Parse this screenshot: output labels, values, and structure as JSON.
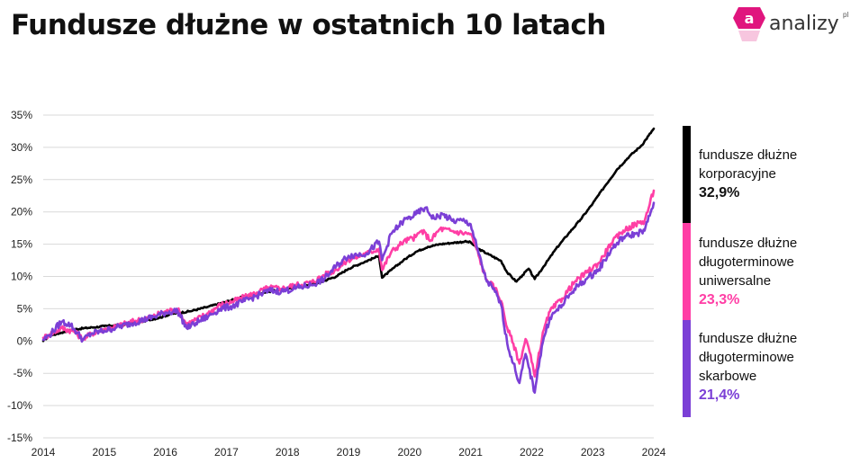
{
  "header": {
    "title": "Fundusze dłużne w ostatnich 10 latach",
    "logo_text": "analizy",
    "logo_sup": "pl",
    "logo_mark": "a"
  },
  "chart_data": {
    "type": "line",
    "title": "Fundusze dłużne w ostatnich 10 latach",
    "xlabel": "",
    "ylabel": "",
    "xlim": [
      2014,
      2024
    ],
    "ylim": [
      -15,
      35
    ],
    "x_ticks": [
      "2014",
      "2015",
      "2016",
      "2017",
      "2018",
      "2019",
      "2020",
      "2021",
      "2022",
      "2023",
      "2024"
    ],
    "y_ticks": [
      "35%",
      "30%",
      "25%",
      "20%",
      "15%",
      "10%",
      "5%",
      "0%",
      "-5%",
      "-10%",
      "-15%"
    ],
    "grid": true,
    "legend_position": "right",
    "series": [
      {
        "name": "fundusze dłużne korporacyjne",
        "final_value": "32,9%",
        "color": "#000000",
        "points": [
          [
            2014.0,
            0.0
          ],
          [
            2014.1,
            0.8
          ],
          [
            2014.3,
            1.3
          ],
          [
            2014.5,
            1.8
          ],
          [
            2014.8,
            2.1
          ],
          [
            2015.0,
            2.3
          ],
          [
            2015.3,
            2.5
          ],
          [
            2015.6,
            3.0
          ],
          [
            2015.9,
            3.6
          ],
          [
            2016.1,
            4.2
          ],
          [
            2016.4,
            4.6
          ],
          [
            2016.7,
            5.3
          ],
          [
            2017.0,
            6.1
          ],
          [
            2017.3,
            6.9
          ],
          [
            2017.6,
            7.5
          ],
          [
            2017.9,
            8.0
          ],
          [
            2018.2,
            8.4
          ],
          [
            2018.5,
            9.0
          ],
          [
            2018.8,
            10.0
          ],
          [
            2019.0,
            11.2
          ],
          [
            2019.2,
            12.0
          ],
          [
            2019.4,
            12.8
          ],
          [
            2019.5,
            13.2
          ],
          [
            2019.55,
            9.8
          ],
          [
            2019.7,
            11.0
          ],
          [
            2019.9,
            12.5
          ],
          [
            2020.1,
            13.8
          ],
          [
            2020.3,
            14.6
          ],
          [
            2020.5,
            15.0
          ],
          [
            2020.7,
            15.2
          ],
          [
            2020.9,
            15.4
          ],
          [
            2021.0,
            15.3
          ],
          [
            2021.1,
            14.4
          ],
          [
            2021.3,
            13.4
          ],
          [
            2021.5,
            12.4
          ],
          [
            2021.6,
            10.6
          ],
          [
            2021.75,
            9.2
          ],
          [
            2021.85,
            10.2
          ],
          [
            2021.95,
            11.2
          ],
          [
            2022.05,
            9.6
          ],
          [
            2022.2,
            11.6
          ],
          [
            2022.4,
            14.3
          ],
          [
            2022.6,
            16.6
          ],
          [
            2022.8,
            18.8
          ],
          [
            2023.0,
            21.3
          ],
          [
            2023.2,
            24.0
          ],
          [
            2023.4,
            26.6
          ],
          [
            2023.6,
            28.6
          ],
          [
            2023.8,
            30.3
          ],
          [
            2024.0,
            32.9
          ]
        ]
      },
      {
        "name": "fundusze dłużne długoterminowe uniwersalne",
        "final_value": "23,3%",
        "color": "#ff3ea5",
        "points": [
          [
            2014.0,
            0.5
          ],
          [
            2014.1,
            1.0
          ],
          [
            2014.3,
            2.0
          ],
          [
            2014.5,
            1.5
          ],
          [
            2014.65,
            0.3
          ],
          [
            2014.8,
            1.2
          ],
          [
            2015.0,
            1.8
          ],
          [
            2015.2,
            2.3
          ],
          [
            2015.5,
            3.1
          ],
          [
            2015.8,
            3.8
          ],
          [
            2016.0,
            4.6
          ],
          [
            2016.2,
            4.9
          ],
          [
            2016.35,
            2.6
          ],
          [
            2016.5,
            3.3
          ],
          [
            2016.7,
            4.3
          ],
          [
            2016.9,
            5.6
          ],
          [
            2017.1,
            6.1
          ],
          [
            2017.3,
            6.8
          ],
          [
            2017.5,
            7.5
          ],
          [
            2017.7,
            8.3
          ],
          [
            2017.9,
            8.1
          ],
          [
            2018.1,
            8.6
          ],
          [
            2018.4,
            9.1
          ],
          [
            2018.6,
            10.2
          ],
          [
            2018.8,
            11.1
          ],
          [
            2019.0,
            12.6
          ],
          [
            2019.3,
            13.6
          ],
          [
            2019.5,
            14.3
          ],
          [
            2019.55,
            11.0
          ],
          [
            2019.7,
            13.8
          ],
          [
            2019.9,
            15.4
          ],
          [
            2020.1,
            16.1
          ],
          [
            2020.2,
            17.1
          ],
          [
            2020.35,
            15.6
          ],
          [
            2020.5,
            17.4
          ],
          [
            2020.7,
            17.0
          ],
          [
            2020.9,
            16.7
          ],
          [
            2021.0,
            16.6
          ],
          [
            2021.1,
            14.2
          ],
          [
            2021.25,
            9.6
          ],
          [
            2021.4,
            8.2
          ],
          [
            2021.5,
            6.2
          ],
          [
            2021.6,
            2.0
          ],
          [
            2021.7,
            -0.4
          ],
          [
            2021.8,
            -3.5
          ],
          [
            2021.9,
            0.3
          ],
          [
            2021.95,
            -1.0
          ],
          [
            2022.05,
            -5.5
          ],
          [
            2022.1,
            -3.0
          ],
          [
            2022.2,
            1.8
          ],
          [
            2022.3,
            4.6
          ],
          [
            2022.5,
            6.6
          ],
          [
            2022.7,
            9.1
          ],
          [
            2022.9,
            10.6
          ],
          [
            2023.1,
            12.1
          ],
          [
            2023.3,
            15.1
          ],
          [
            2023.5,
            17.1
          ],
          [
            2023.7,
            18.1
          ],
          [
            2023.85,
            18.6
          ],
          [
            2024.0,
            23.3
          ]
        ]
      },
      {
        "name": "fundusze dłużne długoterminowe skarbowe",
        "final_value": "21,4%",
        "color": "#7b3fd6",
        "points": [
          [
            2014.0,
            0.2
          ],
          [
            2014.1,
            0.9
          ],
          [
            2014.3,
            3.0
          ],
          [
            2014.45,
            2.5
          ],
          [
            2014.65,
            0.2
          ],
          [
            2014.8,
            1.2
          ],
          [
            2015.0,
            1.6
          ],
          [
            2015.2,
            2.1
          ],
          [
            2015.5,
            2.9
          ],
          [
            2015.8,
            3.7
          ],
          [
            2016.0,
            4.4
          ],
          [
            2016.2,
            4.7
          ],
          [
            2016.35,
            2.0
          ],
          [
            2016.5,
            2.8
          ],
          [
            2016.7,
            3.8
          ],
          [
            2016.9,
            5.0
          ],
          [
            2017.1,
            5.4
          ],
          [
            2017.3,
            6.2
          ],
          [
            2017.5,
            7.0
          ],
          [
            2017.7,
            7.8
          ],
          [
            2017.9,
            7.7
          ],
          [
            2018.1,
            8.1
          ],
          [
            2018.4,
            8.7
          ],
          [
            2018.6,
            9.6
          ],
          [
            2018.8,
            11.6
          ],
          [
            2019.0,
            13.2
          ],
          [
            2019.3,
            13.6
          ],
          [
            2019.5,
            15.4
          ],
          [
            2019.55,
            12.5
          ],
          [
            2019.7,
            16.6
          ],
          [
            2019.9,
            18.6
          ],
          [
            2020.1,
            19.6
          ],
          [
            2020.25,
            20.6
          ],
          [
            2020.4,
            19.0
          ],
          [
            2020.55,
            19.6
          ],
          [
            2020.7,
            18.6
          ],
          [
            2020.9,
            18.6
          ],
          [
            2021.0,
            18.1
          ],
          [
            2021.1,
            14.6
          ],
          [
            2021.25,
            9.6
          ],
          [
            2021.4,
            7.6
          ],
          [
            2021.5,
            5.6
          ],
          [
            2021.6,
            -0.4
          ],
          [
            2021.7,
            -3.5
          ],
          [
            2021.8,
            -6.5
          ],
          [
            2021.9,
            -2.0
          ],
          [
            2021.95,
            -4.0
          ],
          [
            2022.05,
            -8.0
          ],
          [
            2022.1,
            -4.5
          ],
          [
            2022.2,
            0.6
          ],
          [
            2022.3,
            3.6
          ],
          [
            2022.5,
            5.6
          ],
          [
            2022.7,
            8.1
          ],
          [
            2022.9,
            9.6
          ],
          [
            2023.1,
            11.1
          ],
          [
            2023.3,
            14.1
          ],
          [
            2023.5,
            16.1
          ],
          [
            2023.7,
            16.6
          ],
          [
            2023.85,
            17.1
          ],
          [
            2024.0,
            21.4
          ]
        ]
      }
    ]
  },
  "colors": {
    "accent": "#e0157e",
    "corporate": "#000000",
    "universal": "#ff3ea5",
    "treasury": "#7b3fd6",
    "grid": "#d9d9d9"
  }
}
